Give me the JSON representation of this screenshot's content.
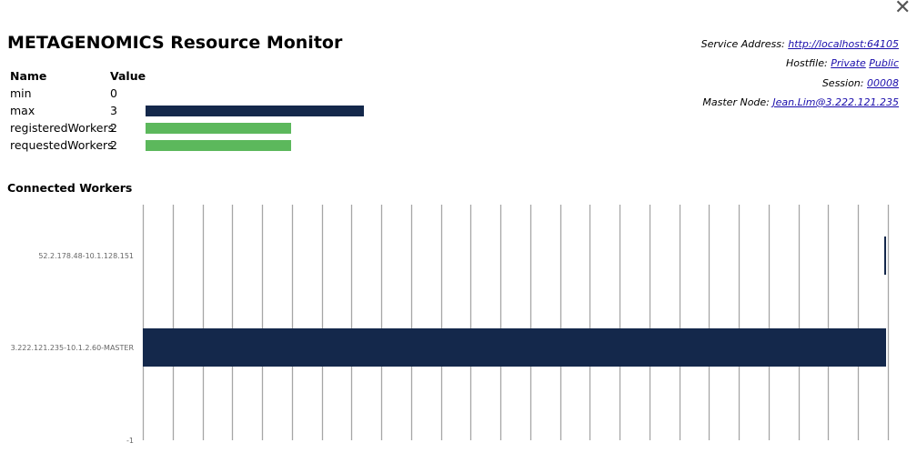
{
  "window": {
    "close_icon": "close-icon",
    "close_glyph": "✕"
  },
  "title": "METAGENOMICS Resource Monitor",
  "stats": {
    "headers": {
      "name": "Name",
      "value": "Value"
    },
    "rows": [
      {
        "name": "min",
        "value": "0",
        "bar_value": 0,
        "color": ""
      },
      {
        "name": "max",
        "value": "3",
        "bar_value": 3,
        "color": "#14284b"
      },
      {
        "name": "registeredWorkers",
        "value": "2",
        "bar_value": 2,
        "color": "#5cb85c"
      },
      {
        "name": "requestedWorkers",
        "value": "2",
        "bar_value": 2,
        "color": "#5cb85c"
      }
    ]
  },
  "info": {
    "service_address_label": "Service Address:",
    "service_address_link": "http://localhost:64105",
    "hostfile_label": "Hostfile:",
    "hostfile_private": "Private",
    "hostfile_public": "Public",
    "session_label": "Session:",
    "session_link": "00008",
    "master_node_label": "Master Node:",
    "master_node_link": "Jean.Lim@3.222.121.235"
  },
  "connected_workers": {
    "title": "Connected Workers"
  },
  "chart_data": {
    "type": "bar",
    "orientation": "horizontal",
    "categories": [
      "-1",
      "3.222.121.235-10.1.2.60-MASTER",
      "52.2.178.48-10.1.128.151"
    ],
    "values": [
      0,
      1,
      0.003
    ],
    "xlim": [
      0,
      1
    ],
    "vertical_gridlines": 26,
    "grid": true,
    "bar_color": "#14284b",
    "title": "",
    "xlabel": "",
    "ylabel": ""
  }
}
